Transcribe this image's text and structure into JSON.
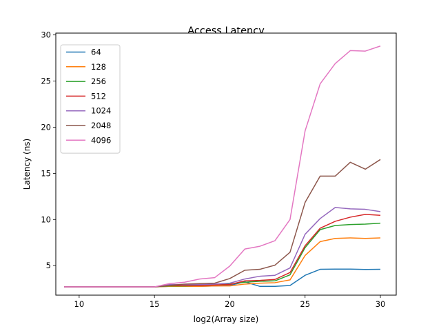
{
  "chart_data": {
    "type": "line",
    "title": "Access Latency",
    "xlabel": "log2(Array size)",
    "ylabel": "Latency (ns)",
    "xlim": [
      8.45,
      31.05
    ],
    "ylim": [
      1.8,
      30.2
    ],
    "xticks": [
      10,
      15,
      20,
      25,
      30
    ],
    "yticks": [
      5,
      10,
      15,
      20,
      25,
      30
    ],
    "legend_position": "upper-left",
    "x": [
      9,
      10,
      11,
      12,
      13,
      14,
      15,
      16,
      17,
      18,
      19,
      20,
      21,
      22,
      23,
      24,
      25,
      26,
      27,
      28,
      29,
      30
    ],
    "series": [
      {
        "name": "64",
        "color": "#1f77b4",
        "values": [
          2.7,
          2.7,
          2.7,
          2.7,
          2.7,
          2.7,
          2.7,
          2.75,
          2.75,
          2.75,
          2.8,
          2.85,
          3.25,
          2.75,
          2.75,
          2.85,
          3.95,
          4.6,
          4.62,
          4.62,
          4.58,
          4.6
        ]
      },
      {
        "name": "128",
        "color": "#ff7f0e",
        "values": [
          2.7,
          2.7,
          2.7,
          2.7,
          2.7,
          2.7,
          2.7,
          2.75,
          2.75,
          2.75,
          2.8,
          2.8,
          3.0,
          3.1,
          3.15,
          3.45,
          6.1,
          7.6,
          7.95,
          8.0,
          7.95,
          8.0
        ]
      },
      {
        "name": "256",
        "color": "#2ca02c",
        "values": [
          2.7,
          2.7,
          2.7,
          2.7,
          2.7,
          2.7,
          2.7,
          2.8,
          2.8,
          2.85,
          2.9,
          3.0,
          3.2,
          3.3,
          3.35,
          4.0,
          6.95,
          8.9,
          9.35,
          9.45,
          9.5,
          9.6
        ]
      },
      {
        "name": "512",
        "color": "#d62728",
        "values": [
          2.7,
          2.7,
          2.7,
          2.7,
          2.7,
          2.7,
          2.7,
          2.85,
          2.85,
          2.85,
          2.9,
          2.95,
          3.35,
          3.4,
          3.5,
          4.25,
          7.15,
          9.05,
          9.8,
          10.25,
          10.55,
          10.45
        ]
      },
      {
        "name": "1024",
        "color": "#9467bd",
        "values": [
          2.7,
          2.7,
          2.7,
          2.7,
          2.7,
          2.7,
          2.7,
          2.95,
          2.95,
          2.95,
          3.0,
          3.1,
          3.55,
          3.85,
          3.95,
          4.75,
          8.4,
          10.1,
          11.3,
          11.15,
          11.1,
          10.85
        ]
      },
      {
        "name": "2048",
        "color": "#8c564b",
        "values": [
          2.7,
          2.7,
          2.7,
          2.7,
          2.7,
          2.7,
          2.7,
          2.85,
          3.0,
          3.05,
          3.1,
          3.6,
          4.5,
          4.6,
          5.05,
          6.45,
          11.85,
          14.7,
          14.7,
          16.2,
          15.45,
          16.5
        ]
      },
      {
        "name": "4096",
        "color": "#e377c2",
        "values": [
          2.7,
          2.7,
          2.7,
          2.7,
          2.7,
          2.7,
          2.7,
          3.05,
          3.2,
          3.55,
          3.7,
          4.95,
          6.8,
          7.1,
          7.7,
          10.0,
          19.6,
          24.7,
          26.9,
          28.3,
          28.25,
          28.8
        ]
      }
    ]
  }
}
